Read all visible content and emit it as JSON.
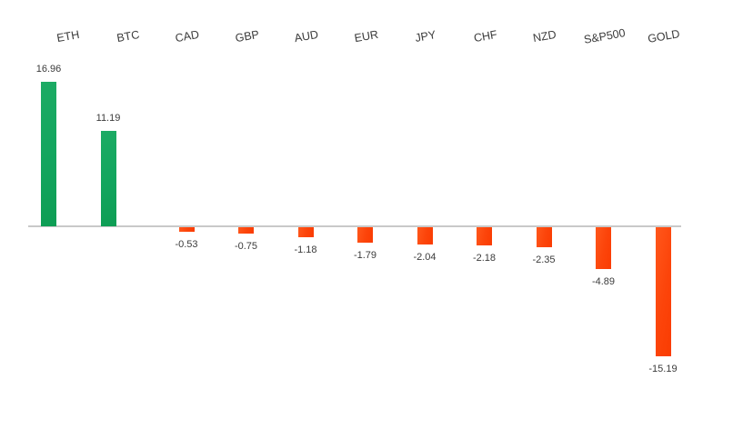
{
  "chart_data": {
    "type": "bar",
    "title": "",
    "xlabel": "",
    "ylabel": "",
    "categories": [
      "ETH",
      "BTC",
      "CAD",
      "GBP",
      "AUD",
      "EUR",
      "JPY",
      "CHF",
      "NZD",
      "S&P500",
      "GOLD"
    ],
    "values": [
      16.96,
      11.19,
      -0.53,
      -0.75,
      -1.18,
      -1.79,
      -2.04,
      -2.18,
      -2.35,
      -4.89,
      -15.19
    ],
    "value_labels": [
      "16.96",
      "11.19",
      "-0.53",
      "-0.75",
      "-1.18",
      "-1.79",
      "-2.04",
      "-2.18",
      "-2.35",
      "-4.89",
      "-15.19"
    ],
    "baseline": 0,
    "ylim": [
      -16,
      18
    ],
    "grid": false,
    "legend": "none",
    "data_labels": "shown outside end",
    "category_labels_position": "top, rotated",
    "positive_color": "#12A55E",
    "negative_color": "#FC440A",
    "axis_color": "#C9C9C9",
    "text_color": "#3B3B3B",
    "background_color": "#FFFFFF"
  }
}
